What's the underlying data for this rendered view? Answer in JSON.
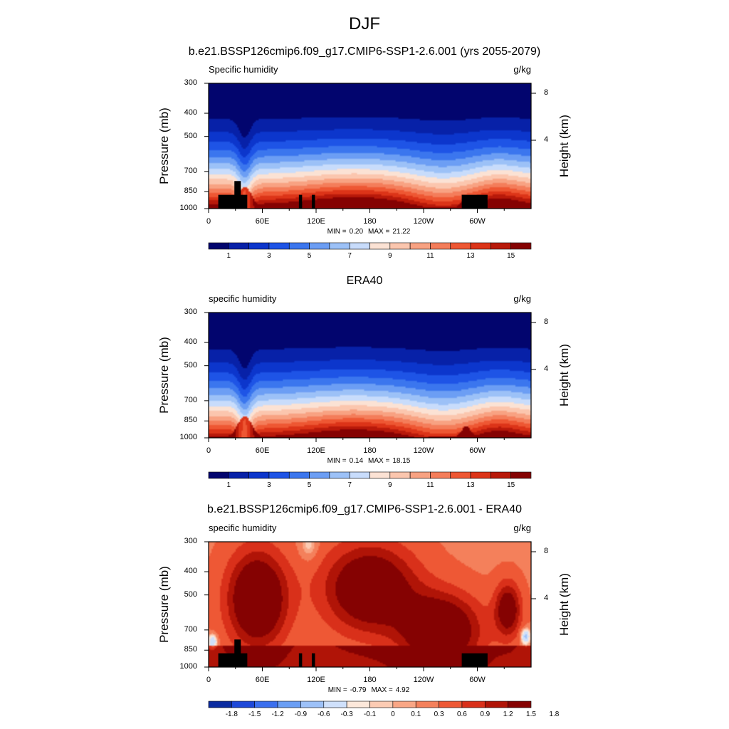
{
  "figure": {
    "title": "DJF"
  },
  "colors": {
    "abs_palette": [
      "#02056e",
      "#0721a8",
      "#0c36cc",
      "#1e54e6",
      "#3b76ee",
      "#6c9ef4",
      "#9cc1f7",
      "#c8dcfb",
      "#fbe2d4",
      "#fbc6ae",
      "#f8a282",
      "#f47d5a",
      "#ee5733",
      "#dc3418",
      "#b8190a",
      "#850202"
    ],
    "diff_palette": [
      "#0b2ba0",
      "#1e48d8",
      "#3b6fee",
      "#6a9ef4",
      "#9dc1f8",
      "#cfe0fb",
      "#fde8da",
      "#fccbb3",
      "#f9a685",
      "#f4805b",
      "#ee5835",
      "#d9301a",
      "#b01407",
      "#850202"
    ],
    "topo": "#000000"
  },
  "chart_data": [
    {
      "type": "contour",
      "title": "b.e21.BSSP126cmip6.f09_g17.CMIP6-SSP1-2.6.001 (yrs 2055-2079)",
      "left_label": "Specific humidity",
      "right_label": "g/kg",
      "ylabel": "Pressure (mb)",
      "ylabel_right": "Height (km)",
      "y_ticks": [
        "300",
        "400",
        "500",
        "700",
        "850",
        "1000"
      ],
      "y_right_ticks": [
        "8",
        "4"
      ],
      "x_ticks": [
        "0",
        "60E",
        "120E",
        "180",
        "120W",
        "60W"
      ],
      "min_label": "MIN =",
      "min_value": "0.20",
      "max_label": "MAX =",
      "max_value": "21.22",
      "colorbar_labels": [
        "1",
        "3",
        "5",
        "7",
        "9",
        "11",
        "13",
        "15"
      ],
      "levels": [
        1,
        2,
        3,
        4,
        5,
        6,
        7,
        8,
        9,
        10,
        11,
        12,
        13,
        14,
        15
      ],
      "topography": true
    },
    {
      "type": "contour",
      "title": "ERA40",
      "left_label": "specific humidity",
      "right_label": "g/kg",
      "ylabel": "Pressure (mb)",
      "ylabel_right": "Height (km)",
      "y_ticks": [
        "300",
        "400",
        "500",
        "700",
        "850",
        "1000"
      ],
      "y_right_ticks": [
        "8",
        "4"
      ],
      "x_ticks": [
        "0",
        "60E",
        "120E",
        "180",
        "120W",
        "60W"
      ],
      "min_label": "MIN =",
      "min_value": "0.14",
      "max_label": "MAX =",
      "max_value": "18.15",
      "colorbar_labels": [
        "1",
        "3",
        "5",
        "7",
        "9",
        "11",
        "13",
        "15"
      ],
      "levels": [
        1,
        2,
        3,
        4,
        5,
        6,
        7,
        8,
        9,
        10,
        11,
        12,
        13,
        14,
        15
      ],
      "topography": false
    },
    {
      "type": "contour",
      "title": "b.e21.BSSP126cmip6.f09_g17.CMIP6-SSP1-2.6.001 - ERA40",
      "left_label": "specific humidity",
      "right_label": "g/kg",
      "ylabel": "Pressure (mb)",
      "ylabel_right": "Height (km)",
      "y_ticks": [
        "300",
        "400",
        "500",
        "700",
        "850",
        "1000"
      ],
      "y_right_ticks": [
        "8",
        "4"
      ],
      "x_ticks": [
        "0",
        "60E",
        "120E",
        "180",
        "120W",
        "60W"
      ],
      "min_label": "MIN =",
      "min_value": "-0.79",
      "max_label": "MAX =",
      "max_value": "4.92",
      "colorbar_labels": [
        "-1.8",
        "-1.5",
        "-1.2",
        "-0.9",
        "-0.6",
        "-0.3",
        "-0.1",
        "0",
        "0.1",
        "0.3",
        "0.6",
        "0.9",
        "1.2",
        "1.5",
        "1.8"
      ],
      "levels": [
        -1.8,
        -1.5,
        -1.2,
        -0.9,
        -0.6,
        -0.3,
        -0.1,
        0,
        0.1,
        0.3,
        0.6,
        0.9,
        1.2,
        1.5,
        1.8
      ],
      "topography": true
    }
  ]
}
